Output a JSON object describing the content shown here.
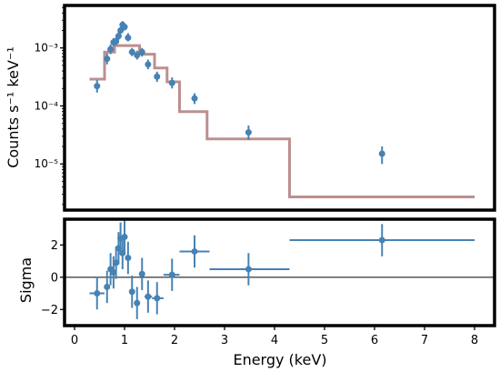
{
  "chart_data": [
    {
      "type": "scatter",
      "panel": "spectrum",
      "ylabel": "Counts s⁻¹ keV⁻¹",
      "yscale": "log",
      "xlim": [
        -0.2,
        8.4
      ],
      "ylim": [
        1.6e-06,
        0.0054
      ],
      "yticks": [
        {
          "value": 1e-05,
          "label": "10⁻⁵"
        },
        {
          "value": 0.0001,
          "label": "10⁻⁴"
        },
        {
          "value": 0.001,
          "label": "10⁻³"
        }
      ],
      "series": [
        {
          "kind": "data",
          "color": "#4682b4",
          "points": [
            {
              "x": 0.45,
              "y": 0.00022,
              "ylo": 0.00017,
              "yhi": 0.00028
            },
            {
              "x": 0.65,
              "y": 0.00065,
              "ylo": 0.00052,
              "yhi": 0.00081
            },
            {
              "x": 0.72,
              "y": 0.00095,
              "ylo": 0.00078,
              "yhi": 0.00115
            },
            {
              "x": 0.78,
              "y": 0.00125,
              "ylo": 0.00105,
              "yhi": 0.00148
            },
            {
              "x": 0.83,
              "y": 0.0013,
              "ylo": 0.0011,
              "yhi": 0.00152
            },
            {
              "x": 0.88,
              "y": 0.0016,
              "ylo": 0.00138,
              "yhi": 0.00185
            },
            {
              "x": 0.92,
              "y": 0.002,
              "ylo": 0.00175,
              "yhi": 0.00228
            },
            {
              "x": 0.96,
              "y": 0.0025,
              "ylo": 0.0022,
              "yhi": 0.0029
            },
            {
              "x": 1.0,
              "y": 0.0023,
              "ylo": 0.002,
              "yhi": 0.0026
            },
            {
              "x": 1.07,
              "y": 0.0015,
              "ylo": 0.0013,
              "yhi": 0.0018
            },
            {
              "x": 1.15,
              "y": 0.00085,
              "ylo": 0.00072,
              "yhi": 0.001
            },
            {
              "x": 1.25,
              "y": 0.00075,
              "ylo": 0.00063,
              "yhi": 0.0009
            },
            {
              "x": 1.35,
              "y": 0.00085,
              "ylo": 0.00071,
              "yhi": 0.001
            },
            {
              "x": 1.47,
              "y": 0.00052,
              "ylo": 0.00043,
              "yhi": 0.00063
            },
            {
              "x": 1.65,
              "y": 0.00032,
              "ylo": 0.00026,
              "yhi": 0.00039
            },
            {
              "x": 1.95,
              "y": 0.00025,
              "ylo": 0.0002,
              "yhi": 0.00031
            },
            {
              "x": 2.4,
              "y": 0.000135,
              "ylo": 0.000108,
              "yhi": 0.000165
            },
            {
              "x": 3.48,
              "y": 3.5e-05,
              "ylo": 2.6e-05,
              "yhi": 4.6e-05
            },
            {
              "x": 6.15,
              "y": 1.5e-05,
              "ylo": 1e-05,
              "yhi": 2e-05
            }
          ]
        },
        {
          "kind": "model-step",
          "color": "#bc8f8f",
          "edges": [
            0.3,
            0.6,
            0.8,
            0.95,
            1.3,
            1.6,
            1.85,
            2.1,
            2.65,
            4.3,
            8.0
          ],
          "values": [
            0.00029,
            0.00085,
            0.0011,
            0.0011,
            0.00078,
            0.00045,
            0.00026,
            8e-05,
            2.7e-05,
            2.7e-06
          ]
        }
      ]
    },
    {
      "type": "scatter",
      "panel": "residuals",
      "xlabel": "Energy (keV)",
      "ylabel": "Sigma",
      "xlim": [
        -0.2,
        8.4
      ],
      "ylim": [
        -3.0,
        3.6
      ],
      "xticks": [
        0,
        1,
        2,
        3,
        4,
        5,
        6,
        7,
        8
      ],
      "yticks": [
        -2,
        0,
        2
      ],
      "reference_line": 0,
      "color": "#4682b4",
      "points": [
        {
          "x": 0.45,
          "xlo": 0.3,
          "xhi": 0.6,
          "y": -1.0,
          "yerr": 1.0
        },
        {
          "x": 0.65,
          "xlo": 0.6,
          "xhi": 0.7,
          "y": -0.6,
          "yerr": 1.0
        },
        {
          "x": 0.72,
          "xlo": 0.7,
          "xhi": 0.76,
          "y": 0.5,
          "yerr": 1.0
        },
        {
          "x": 0.78,
          "xlo": 0.76,
          "xhi": 0.8,
          "y": 0.3,
          "yerr": 1.0
        },
        {
          "x": 0.83,
          "xlo": 0.8,
          "xhi": 0.86,
          "y": 0.9,
          "yerr": 1.0
        },
        {
          "x": 0.88,
          "xlo": 0.86,
          "xhi": 0.9,
          "y": 1.8,
          "yerr": 1.0
        },
        {
          "x": 0.92,
          "xlo": 0.9,
          "xhi": 0.94,
          "y": 2.4,
          "yerr": 1.0
        },
        {
          "x": 0.96,
          "xlo": 0.94,
          "xhi": 0.98,
          "y": 1.5,
          "yerr": 1.0
        },
        {
          "x": 1.0,
          "xlo": 0.98,
          "xhi": 1.03,
          "y": 2.5,
          "yerr": 1.0
        },
        {
          "x": 1.07,
          "xlo": 1.03,
          "xhi": 1.11,
          "y": 1.2,
          "yerr": 1.0
        },
        {
          "x": 1.15,
          "xlo": 1.11,
          "xhi": 1.2,
          "y": -0.9,
          "yerr": 1.0
        },
        {
          "x": 1.25,
          "xlo": 1.2,
          "xhi": 1.3,
          "y": -1.6,
          "yerr": 1.0
        },
        {
          "x": 1.35,
          "xlo": 1.3,
          "xhi": 1.4,
          "y": 0.2,
          "yerr": 1.0
        },
        {
          "x": 1.47,
          "xlo": 1.4,
          "xhi": 1.55,
          "y": -1.2,
          "yerr": 1.0
        },
        {
          "x": 1.65,
          "xlo": 1.55,
          "xhi": 1.78,
          "y": -1.3,
          "yerr": 1.0
        },
        {
          "x": 1.95,
          "xlo": 1.78,
          "xhi": 2.1,
          "y": 0.15,
          "yerr": 1.0
        },
        {
          "x": 2.4,
          "xlo": 2.1,
          "xhi": 2.7,
          "y": 1.6,
          "yerr": 1.0
        },
        {
          "x": 3.48,
          "xlo": 2.7,
          "xhi": 4.3,
          "y": 0.5,
          "yerr": 1.0
        },
        {
          "x": 6.15,
          "xlo": 4.3,
          "xhi": 8.0,
          "y": 2.3,
          "yerr": 1.0
        }
      ]
    }
  ]
}
